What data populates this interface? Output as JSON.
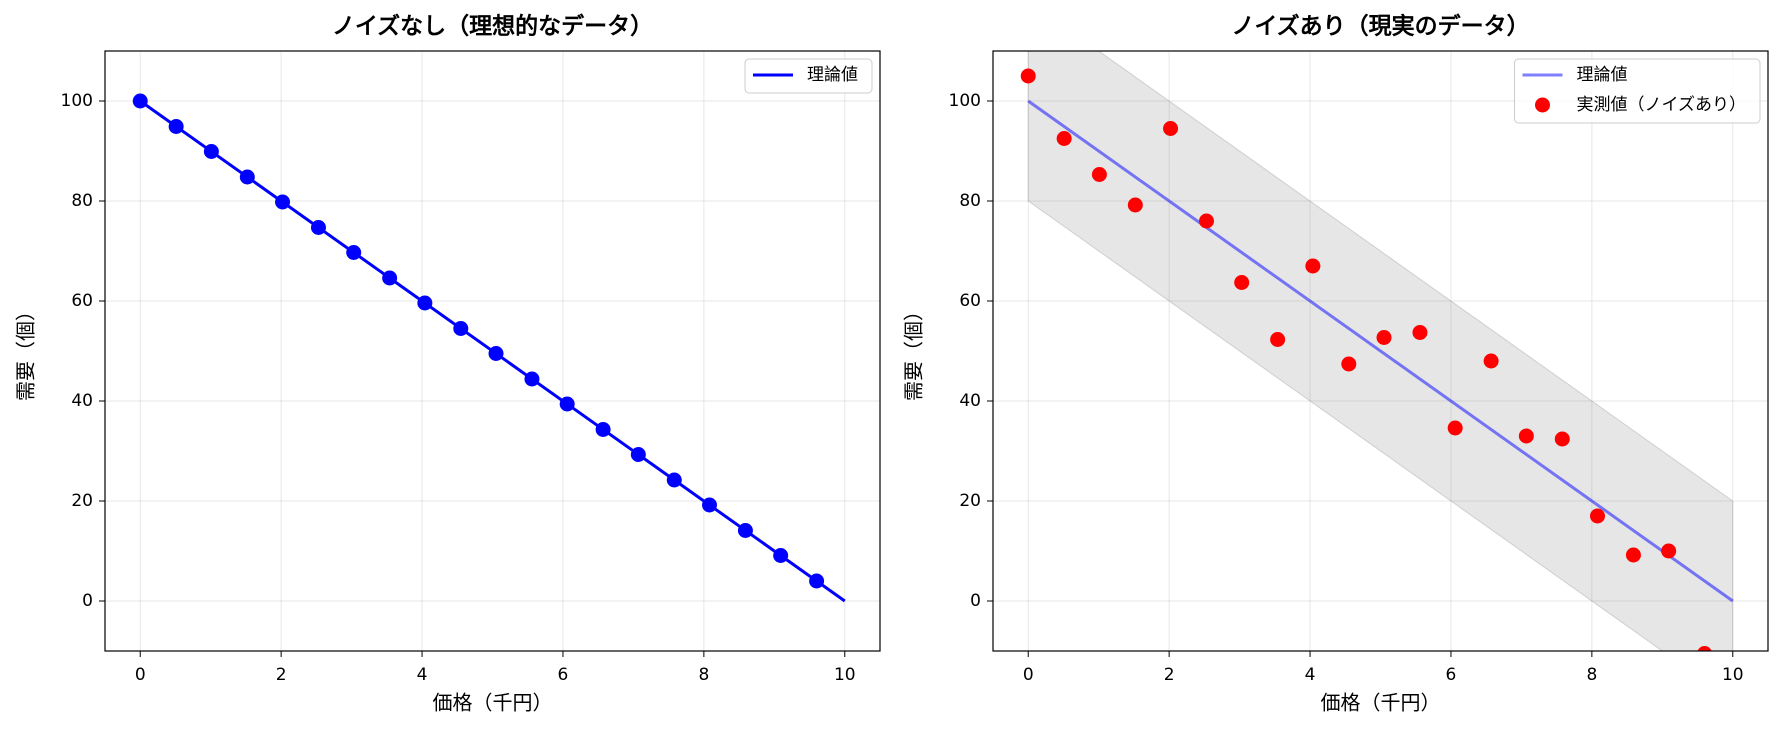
{
  "chart_data": [
    {
      "type": "line",
      "title": "ノイズなし（理想的なデータ）",
      "xlabel": "価格（千円）",
      "ylabel": "需要（個）",
      "xlim": [
        -0.5,
        10.5
      ],
      "ylim": [
        -10,
        110
      ],
      "xticks": [
        0,
        2,
        4,
        6,
        8,
        10
      ],
      "yticks": [
        0,
        20,
        40,
        60,
        80,
        100
      ],
      "grid": true,
      "legend": "upper right",
      "series": [
        {
          "name": "理論値",
          "color": "#0000ff",
          "kind": "line",
          "x": [
            0,
            10
          ],
          "values": [
            100,
            0
          ]
        },
        {
          "color": "#0000ff",
          "kind": "marker",
          "x": [
            0,
            0.51,
            1.01,
            1.52,
            2.02,
            2.53,
            3.03,
            3.54,
            4.04,
            4.55,
            5.05,
            5.56,
            6.06,
            6.57,
            7.07,
            7.58,
            8.08,
            8.59,
            9.09,
            9.6
          ],
          "values": [
            100,
            94.9,
            89.9,
            84.8,
            79.8,
            74.7,
            69.7,
            64.6,
            59.6,
            54.5,
            49.5,
            44.4,
            39.4,
            34.3,
            29.3,
            24.2,
            19.2,
            14.1,
            9.1,
            4.0
          ]
        }
      ]
    },
    {
      "type": "scatter",
      "title": "ノイズあり（現実のデータ）",
      "xlabel": "価格（千円）",
      "ylabel": "需要（個）",
      "xlim": [
        -0.5,
        10.5
      ],
      "ylim": [
        -10,
        110
      ],
      "xticks": [
        0,
        2,
        4,
        6,
        8,
        10
      ],
      "yticks": [
        0,
        20,
        40,
        60,
        80,
        100
      ],
      "grid": true,
      "legend": "upper right",
      "band": {
        "color": "#808080",
        "x": [
          0,
          10
        ],
        "lower": [
          80,
          -20
        ],
        "upper": [
          120,
          20
        ]
      },
      "series": [
        {
          "name": "理論値",
          "color": "#0000ff",
          "opacity": 0.5,
          "kind": "line",
          "x": [
            0,
            10
          ],
          "values": [
            100,
            0
          ]
        },
        {
          "name": "実測値（ノイズあり）",
          "color": "#ff0000",
          "kind": "marker",
          "x": [
            0,
            0.51,
            1.01,
            1.52,
            2.02,
            2.53,
            3.03,
            3.54,
            4.04,
            4.55,
            5.05,
            5.56,
            6.06,
            6.57,
            7.07,
            7.58,
            8.08,
            8.59,
            9.09,
            9.6
          ],
          "values": [
            105,
            92.5,
            85.3,
            79.2,
            94.5,
            76,
            63.7,
            52.3,
            67,
            47.4,
            52.7,
            53.7,
            34.6,
            48,
            33,
            32.4,
            17,
            9.2,
            10,
            -10.5
          ]
        }
      ]
    }
  ]
}
